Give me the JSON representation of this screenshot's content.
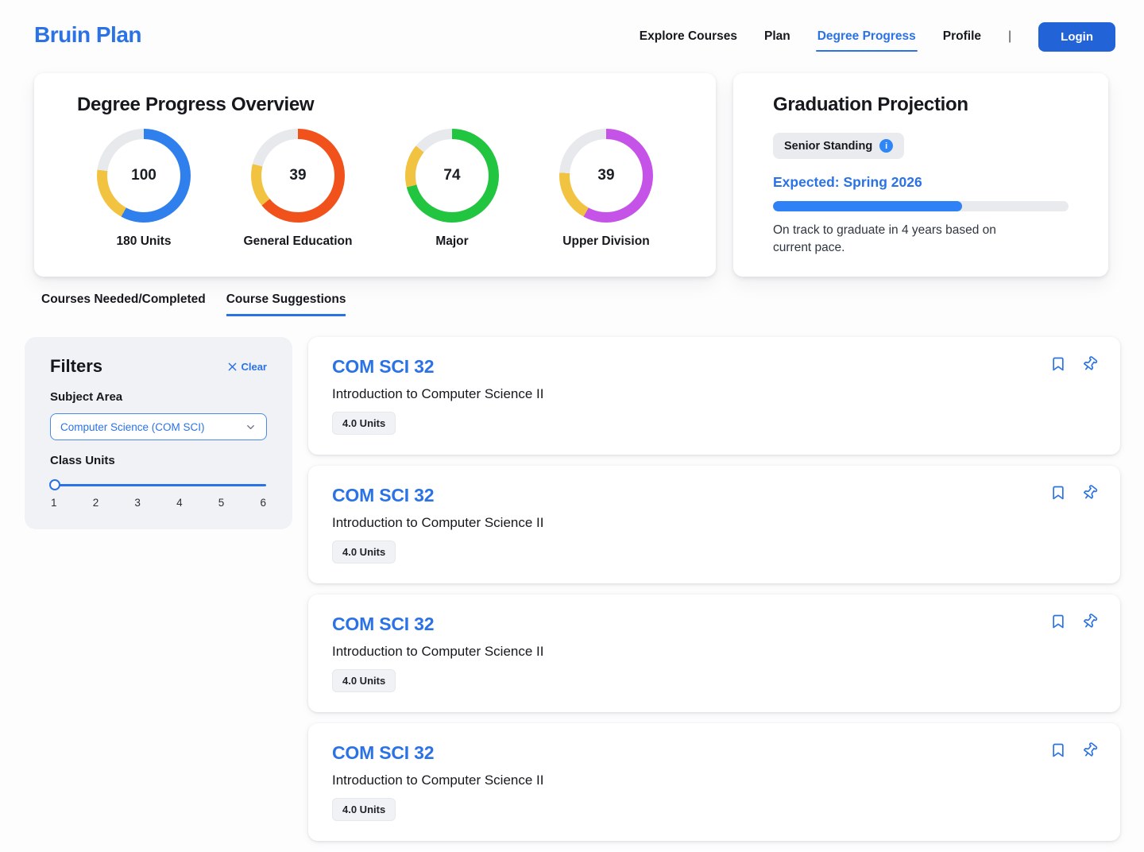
{
  "header": {
    "brand": "Bruin Plan",
    "nav": [
      {
        "label": "Explore Courses",
        "active": false
      },
      {
        "label": "Plan",
        "active": false
      },
      {
        "label": "Degree Progress",
        "active": true
      },
      {
        "label": "Profile",
        "active": false
      }
    ],
    "divider": "|",
    "login_label": "Login"
  },
  "colors": {
    "accent_blue": "#2a72e5",
    "button_blue": "#2264d8",
    "progress_blue": "#2e82f5",
    "ring_blue": "#2f80ed",
    "ring_orange": "#f1511b",
    "ring_green": "#22c53f",
    "ring_purple": "#c653e8",
    "ring_yellow": "#f2c341",
    "ring_track": "#e7e9ec"
  },
  "overview": {
    "title": "Degree Progress Overview"
  },
  "chart_data": [
    {
      "type": "pie",
      "title": "180 Units",
      "center_value": "100",
      "slices": [
        {
          "label": "completed",
          "pct": 58,
          "color": "#2f80ed"
        },
        {
          "label": "in-progress",
          "pct": 19,
          "color": "#f2c341"
        },
        {
          "label": "remaining",
          "pct": 23,
          "color": "#e7e9ec"
        }
      ]
    },
    {
      "type": "pie",
      "title": "General Education",
      "center_value": "39",
      "slices": [
        {
          "label": "completed",
          "pct": 64,
          "color": "#f1511b"
        },
        {
          "label": "in-progress",
          "pct": 15,
          "color": "#f2c341"
        },
        {
          "label": "remaining",
          "pct": 21,
          "color": "#e7e9ec"
        }
      ]
    },
    {
      "type": "pie",
      "title": "Major",
      "center_value": "74",
      "slices": [
        {
          "label": "completed",
          "pct": 71,
          "color": "#22c53f"
        },
        {
          "label": "in-progress",
          "pct": 15,
          "color": "#f2c341"
        },
        {
          "label": "remaining",
          "pct": 14,
          "color": "#e7e9ec"
        }
      ]
    },
    {
      "type": "pie",
      "title": "Upper Division",
      "center_value": "39",
      "slices": [
        {
          "label": "completed",
          "pct": 58,
          "color": "#c653e8"
        },
        {
          "label": "in-progress",
          "pct": 18,
          "color": "#f2c341"
        },
        {
          "label": "remaining",
          "pct": 24,
          "color": "#e7e9ec"
        }
      ]
    }
  ],
  "projection": {
    "title": "Graduation Projection",
    "standing_badge": "Senior Standing",
    "info_glyph": "i",
    "expected": "Expected: Spring 2026",
    "progress_pct": 64,
    "note": "On track to graduate in 4 years based on current pace."
  },
  "tabs": [
    {
      "label": "Courses Needed/Completed",
      "active": false
    },
    {
      "label": "Course Suggestions",
      "active": true
    }
  ],
  "filters": {
    "title": "Filters",
    "clear_label": "Clear",
    "subject_area_label": "Subject Area",
    "subject_area_value": "Computer Science (COM SCI)",
    "class_units_label": "Class Units",
    "slider_value": "1",
    "ticks": [
      "1",
      "2",
      "3",
      "4",
      "5",
      "6"
    ]
  },
  "courses": [
    {
      "code": "COM SCI 32",
      "title": "Introduction to Computer Science II",
      "units": "4.0 Units"
    },
    {
      "code": "COM SCI 32",
      "title": "Introduction to Computer Science II",
      "units": "4.0 Units"
    },
    {
      "code": "COM SCI 32",
      "title": "Introduction to Computer Science II",
      "units": "4.0 Units"
    },
    {
      "code": "COM SCI 32",
      "title": "Introduction to Computer Science II",
      "units": "4.0 Units"
    }
  ]
}
